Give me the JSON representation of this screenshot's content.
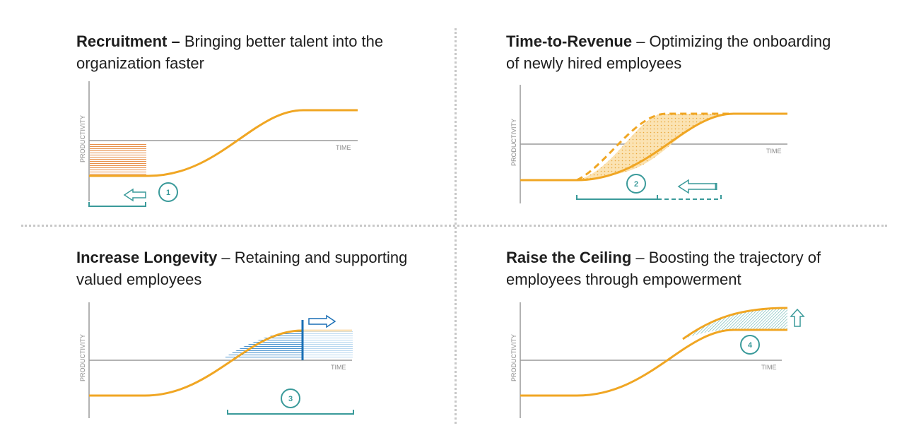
{
  "panels": [
    {
      "title_bold": "Recruitment –",
      "title_rest": " Bringing better talent into the organization faster",
      "y_axis": "PRODUCTIVITY",
      "x_axis": "TIME",
      "step": "1"
    },
    {
      "title_bold": "Time-to-Revenue",
      "title_rest": " – Optimizing the onboarding of newly hired employees",
      "y_axis": "PRODUCTIVITY",
      "x_axis": "TIME",
      "step": "2"
    },
    {
      "title_bold": "Increase Longevity",
      "title_rest": " – Retaining and supporting valued employees",
      "y_axis": "PRODUCTIVITY",
      "x_axis": "TIME",
      "step": "3"
    },
    {
      "title_bold": "Raise the Ceiling",
      "title_rest": " – Boosting the trajectory of employees through empowerment",
      "y_axis": "PRODUCTIVITY",
      "x_axis": "TIME",
      "step": "4"
    }
  ],
  "colors": {
    "curve": "#f0a623",
    "teal": "#3a9a9a",
    "blue": "#1a6fb5",
    "axis": "#9a9a9a",
    "divider": "#c8c8c8"
  }
}
